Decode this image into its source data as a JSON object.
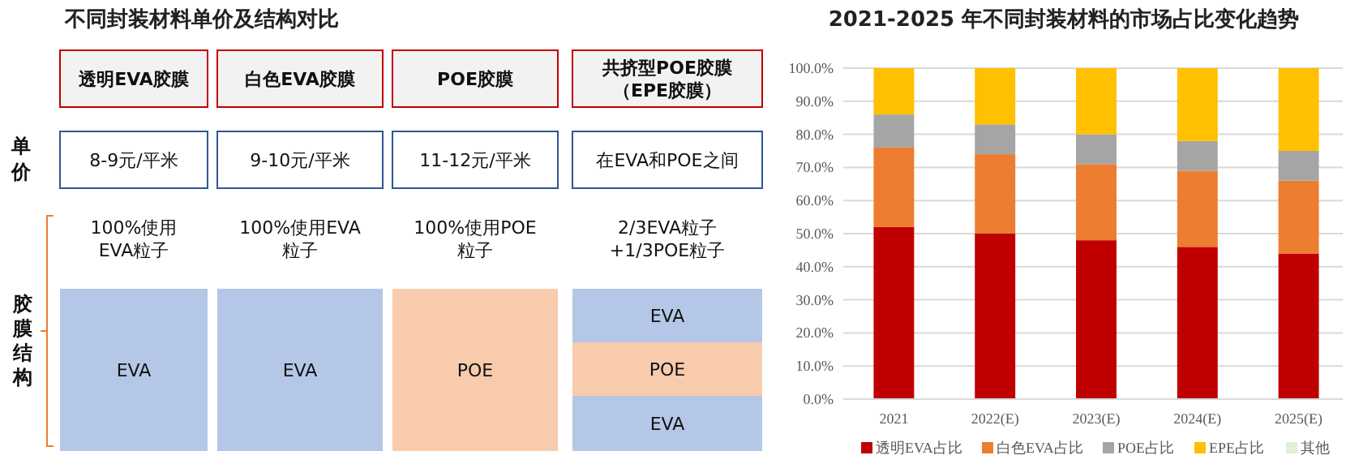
{
  "chart_data": [
    {
      "type": "other",
      "title": "不同封装材料单价及结构对比",
      "categories": [
        "透明EVA胶膜",
        "白色EVA胶膜",
        "POE胶膜",
        "共挤型POE胶膜（EPE胶膜）"
      ],
      "annotations": [
        "单价",
        "胶膜结构",
        "8-9元/平米",
        "9-10元/平米",
        "11-12元/平米",
        "在EVA和POE之间",
        "100%使用",
        "EVA粒子",
        "100%使用EVA",
        "粒子",
        "100%使用POE",
        "粒子",
        "2/3EVA粒子",
        "+1/3POE粒子",
        "EVA",
        "EVA",
        "POE",
        "EVA",
        "POE",
        "EVA"
      ]
    },
    {
      "type": "bar",
      "stacked": true,
      "title": "2021-2025 年不同封装材料的市场占比变化趋势",
      "categories": [
        "2021",
        "2022(E)",
        "2023(E)",
        "2024(E)",
        "2025(E)"
      ],
      "series": [
        {
          "name": "透明EVA占比",
          "color": "#c00000",
          "values": [
            52,
            50,
            48,
            46,
            44
          ]
        },
        {
          "name": "白色EVA占比",
          "color": "#ed7d31",
          "values": [
            24,
            24,
            23,
            23,
            22
          ]
        },
        {
          "name": "POE占比",
          "color": "#a5a5a5",
          "values": [
            10,
            9,
            9,
            9,
            9
          ]
        },
        {
          "name": "EPE占比",
          "color": "#ffc000",
          "values": [
            14,
            17,
            20,
            22,
            25
          ]
        },
        {
          "name": "其他",
          "color": "#e2efda",
          "values": [
            0,
            0,
            0,
            0,
            0
          ]
        }
      ],
      "ylim": [
        0,
        100
      ],
      "yticks": [
        {
          "value": 0,
          "label": "0.0%"
        },
        {
          "value": 10,
          "label": "10.0%"
        },
        {
          "value": 20,
          "label": "20.0%"
        },
        {
          "value": 30,
          "label": "30.0%"
        },
        {
          "value": 40,
          "label": "40.0%"
        },
        {
          "value": 50,
          "label": "50.0%"
        },
        {
          "value": 60,
          "label": "60.0%"
        },
        {
          "value": 70,
          "label": "70.0%"
        },
        {
          "value": 80,
          "label": "80.0%"
        },
        {
          "value": 90,
          "label": "90.0%"
        },
        {
          "value": 100,
          "label": "100.0%"
        }
      ],
      "grid": "y",
      "legend": "bottom"
    }
  ]
}
